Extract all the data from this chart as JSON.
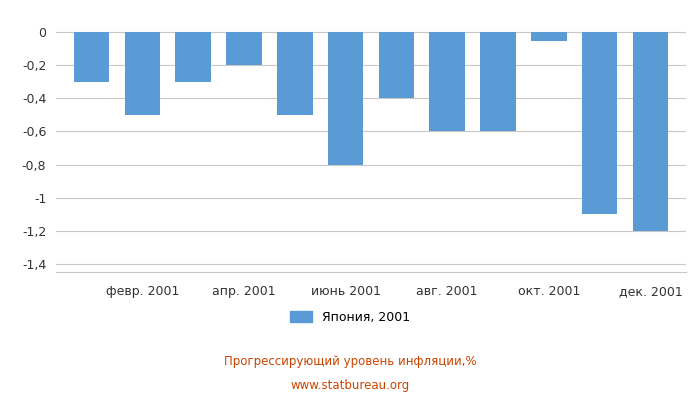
{
  "months_count": 12,
  "values": [
    -0.3,
    -0.5,
    -0.3,
    -0.2,
    -0.5,
    -0.8,
    -0.4,
    -0.6,
    -0.6,
    -0.05,
    -1.1,
    -1.2
  ],
  "bar_color": "#5b9bd5",
  "xtick_labels": [
    "февр. 2001",
    "апр. 2001",
    "июнь 2001",
    "авг. 2001",
    "окт. 2001",
    "дек. 2001"
  ],
  "xtick_positions": [
    1,
    3,
    5,
    7,
    9,
    11
  ],
  "yticks": [
    0,
    -0.2,
    -0.4,
    -0.6,
    -0.8,
    -1.0,
    -1.2,
    -1.4
  ],
  "ytick_labels": [
    "0",
    "-0,2",
    "-0,4",
    "-0,6",
    "-0,8",
    "-1",
    "-1,2",
    "-1,4"
  ],
  "ylim": [
    -1.45,
    0.05
  ],
  "legend_label": "Япония, 2001",
  "title_line1": "Прогрессирующий уровень инфляции,%",
  "title_line2": "www.statbureau.org",
  "background_color": "#ffffff",
  "grid_color": "#c8c8c8",
  "bar_width": 0.7
}
